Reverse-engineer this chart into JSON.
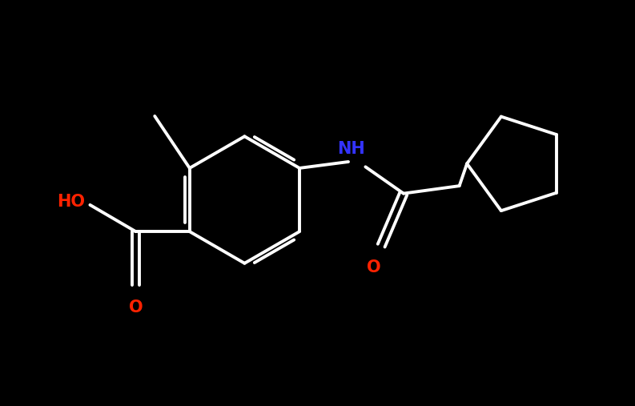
{
  "background_color": "#000000",
  "bond_color": "#ffffff",
  "bond_width": 2.8,
  "NH_color": "#3333ff",
  "O_color": "#ff2200",
  "HO_color": "#ff2200",
  "figsize": [
    7.93,
    5.07
  ],
  "dpi": 100,
  "xlim": [
    0,
    10
  ],
  "ylim": [
    0,
    6.4
  ]
}
